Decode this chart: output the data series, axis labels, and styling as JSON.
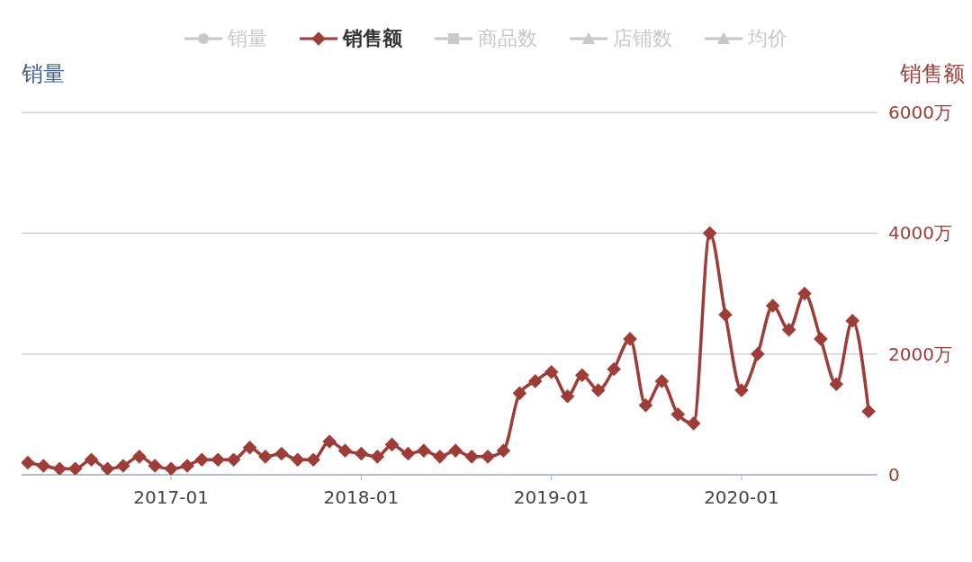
{
  "chart_data": {
    "type": "line",
    "ylabel": "销量",
    "y2label": "销售额",
    "x": [
      "2016-04",
      "2016-05",
      "2016-06",
      "2016-07",
      "2016-08",
      "2016-09",
      "2016-10",
      "2016-11",
      "2016-12",
      "2017-01",
      "2017-02",
      "2017-03",
      "2017-04",
      "2017-05",
      "2017-06",
      "2017-07",
      "2017-08",
      "2017-09",
      "2017-10",
      "2017-11",
      "2017-12",
      "2018-01",
      "2018-02",
      "2018-03",
      "2018-04",
      "2018-05",
      "2018-06",
      "2018-07",
      "2018-08",
      "2018-09",
      "2018-10",
      "2018-11",
      "2018-12",
      "2019-01",
      "2019-02",
      "2019-03",
      "2019-04",
      "2019-05",
      "2019-06",
      "2019-07",
      "2019-08",
      "2019-09",
      "2019-10",
      "2019-11",
      "2019-12",
      "2020-01",
      "2020-02",
      "2020-03",
      "2020-04",
      "2020-05",
      "2020-06",
      "2020-07",
      "2020-08",
      "2020-09"
    ],
    "series": [
      {
        "name": "销量",
        "color": "#c8c8c8",
        "marker": "circle",
        "values": [
          null,
          null,
          null,
          null,
          null,
          null,
          null,
          null,
          null,
          null,
          null,
          null,
          null,
          null,
          null,
          null,
          null,
          null,
          null,
          null,
          null,
          null,
          null,
          null,
          null,
          null,
          null,
          null,
          null,
          null,
          null,
          null,
          null,
          null,
          null,
          null,
          null,
          null,
          null,
          null,
          null,
          null,
          null,
          null,
          null,
          null,
          null,
          null,
          null,
          null,
          null,
          null,
          null,
          null
        ]
      },
      {
        "name": "销售额",
        "color": "#9e3d38",
        "marker": "diamond",
        "axis": "y2",
        "values": [
          200,
          150,
          100,
          100,
          250,
          100,
          150,
          300,
          150,
          100,
          150,
          250,
          250,
          250,
          450,
          300,
          350,
          250,
          250,
          550,
          400,
          350,
          300,
          500,
          350,
          400,
          300,
          400,
          300,
          300,
          400,
          1350,
          1550,
          1700,
          1300,
          1650,
          1400,
          1750,
          2250,
          1150,
          1550,
          1000,
          850,
          4000,
          2650,
          1400,
          2000,
          2800,
          2400,
          3000,
          2250,
          1500,
          2550,
          1050
        ]
      },
      {
        "name": "商品数",
        "color": "#c8c8c8",
        "marker": "square",
        "values": [
          null,
          null,
          null,
          null,
          null,
          null,
          null,
          null,
          null,
          null,
          null,
          null,
          null,
          null,
          null,
          null,
          null,
          null,
          null,
          null,
          null,
          null,
          null,
          null,
          null,
          null,
          null,
          null,
          null,
          null,
          null,
          null,
          null,
          null,
          null,
          null,
          null,
          null,
          null,
          null,
          null,
          null,
          null,
          null,
          null,
          null,
          null,
          null,
          null,
          null,
          null,
          null,
          null,
          null
        ]
      },
      {
        "name": "店铺数",
        "color": "#c8c8c8",
        "marker": "triangle",
        "values": [
          null,
          null,
          null,
          null,
          null,
          null,
          null,
          null,
          null,
          null,
          null,
          null,
          null,
          null,
          null,
          null,
          null,
          null,
          null,
          null,
          null,
          null,
          null,
          null,
          null,
          null,
          null,
          null,
          null,
          null,
          null,
          null,
          null,
          null,
          null,
          null,
          null,
          null,
          null,
          null,
          null,
          null,
          null,
          null,
          null,
          null,
          null,
          null,
          null,
          null,
          null,
          null,
          null,
          null
        ]
      },
      {
        "name": "均价",
        "color": "#c8c8c8",
        "marker": "triangle",
        "values": [
          null,
          null,
          null,
          null,
          null,
          null,
          null,
          null,
          null,
          null,
          null,
          null,
          null,
          null,
          null,
          null,
          null,
          null,
          null,
          null,
          null,
          null,
          null,
          null,
          null,
          null,
          null,
          null,
          null,
          null,
          null,
          null,
          null,
          null,
          null,
          null,
          null,
          null,
          null,
          null,
          null,
          null,
          null,
          null,
          null,
          null,
          null,
          null,
          null,
          null,
          null,
          null,
          null,
          null
        ]
      }
    ],
    "xlim": [
      "2016-03-20",
      "2020-09-18"
    ],
    "xticks": [
      "2017-01",
      "2018-01",
      "2019-01",
      "2020-01"
    ],
    "y2lim": [
      0,
      6000
    ],
    "y2ticks": [
      {
        "value": 0,
        "label": "0"
      },
      {
        "value": 2000,
        "label": "2000万"
      },
      {
        "value": 4000,
        "label": "4000万"
      },
      {
        "value": 6000,
        "label": "6000万"
      }
    ],
    "grid": "y",
    "legend": "top",
    "line_style": "solid"
  }
}
